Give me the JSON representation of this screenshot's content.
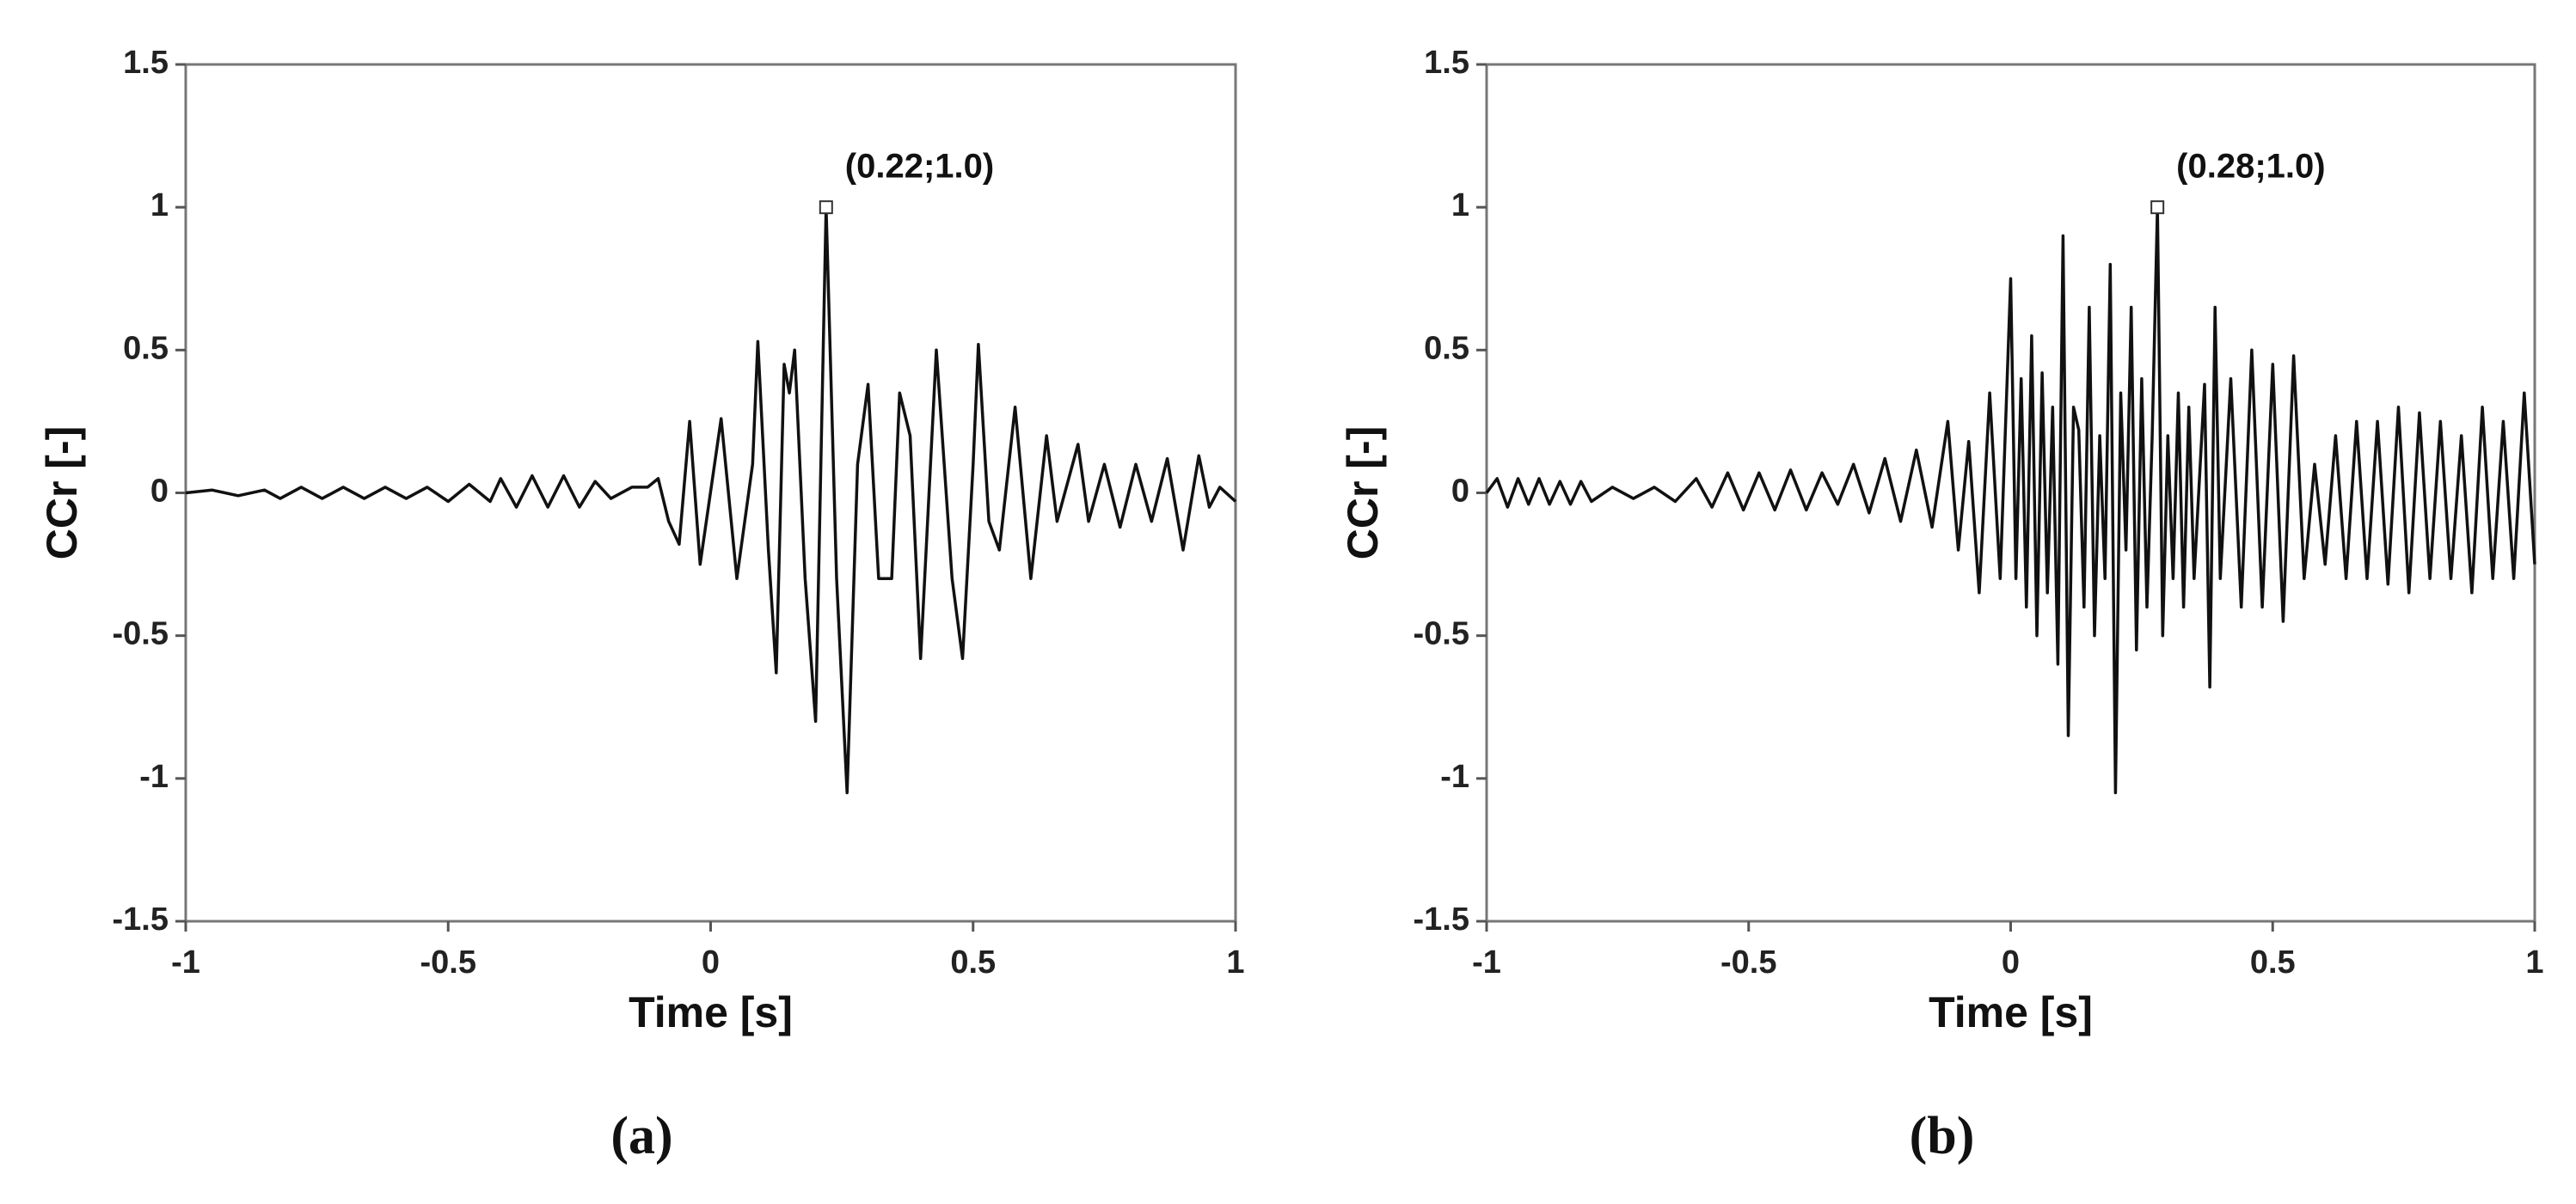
{
  "chart_data": [
    {
      "type": "line",
      "caption": "(a)",
      "xlabel": "Time [s]",
      "ylabel": "CCr [-]",
      "xlim": [
        -1,
        1
      ],
      "ylim": [
        -1.5,
        1.5
      ],
      "xticks": [
        -1,
        -0.5,
        0,
        0.5,
        1
      ],
      "yticks": [
        -1.5,
        -1,
        -0.5,
        0,
        0.5,
        1,
        1.5
      ],
      "annotation": {
        "text": "(0.22;1.0)",
        "x": 0.22,
        "y": 1.0
      },
      "series": [
        {
          "color": "#111111",
          "x": [
            -1,
            -0.95,
            -0.9,
            -0.85,
            -0.82,
            -0.78,
            -0.74,
            -0.7,
            -0.66,
            -0.62,
            -0.58,
            -0.54,
            -0.5,
            -0.46,
            -0.42,
            -0.4,
            -0.37,
            -0.34,
            -0.31,
            -0.28,
            -0.25,
            -0.22,
            -0.19,
            -0.15,
            -0.12,
            -0.1,
            -0.08,
            -0.06,
            -0.04,
            -0.02,
            0.02,
            0.05,
            0.08,
            0.09,
            0.11,
            0.125,
            0.14,
            0.15,
            0.16,
            0.18,
            0.2,
            0.22,
            0.24,
            0.26,
            0.28,
            0.3,
            0.32,
            0.345,
            0.36,
            0.38,
            0.4,
            0.43,
            0.46,
            0.48,
            0.5,
            0.51,
            0.53,
            0.55,
            0.58,
            0.61,
            0.64,
            0.66,
            0.7,
            0.72,
            0.75,
            0.78,
            0.81,
            0.84,
            0.87,
            0.9,
            0.93,
            0.95,
            0.97,
            1
          ],
          "values": [
            0,
            0.01,
            -0.01,
            0.01,
            -0.02,
            0.02,
            -0.02,
            0.02,
            -0.02,
            0.02,
            -0.02,
            0.02,
            -0.03,
            0.03,
            -0.03,
            0.05,
            -0.05,
            0.06,
            -0.05,
            0.06,
            -0.05,
            0.04,
            -0.02,
            0.02,
            0.02,
            0.05,
            -0.1,
            -0.18,
            0.25,
            -0.25,
            0.26,
            -0.3,
            0.1,
            0.53,
            -0.2,
            -0.63,
            0.45,
            0.35,
            0.5,
            -0.3,
            -0.8,
            1.0,
            -0.3,
            -1.05,
            0.1,
            0.38,
            -0.3,
            -0.3,
            0.35,
            0.2,
            -0.58,
            0.5,
            -0.3,
            -0.58,
            0.1,
            0.52,
            -0.1,
            -0.2,
            0.3,
            -0.3,
            0.2,
            -0.1,
            0.17,
            -0.1,
            0.1,
            -0.12,
            0.1,
            -0.1,
            0.12,
            -0.2,
            0.13,
            -0.05,
            0.02,
            -0.03
          ]
        }
      ]
    },
    {
      "type": "line",
      "caption": "(b)",
      "xlabel": "Time [s]",
      "ylabel": "CCr [-]",
      "xlim": [
        -1,
        1
      ],
      "ylim": [
        -1.5,
        1.5
      ],
      "xticks": [
        -1,
        -0.5,
        0,
        0.5,
        1
      ],
      "yticks": [
        -1.5,
        -1,
        -0.5,
        0,
        0.5,
        1,
        1.5
      ],
      "annotation": {
        "text": "(0.28;1.0)",
        "x": 0.28,
        "y": 1.0
      },
      "series": [
        {
          "color": "#111111",
          "x": [
            -1,
            -0.98,
            -0.96,
            -0.94,
            -0.92,
            -0.9,
            -0.88,
            -0.86,
            -0.84,
            -0.82,
            -0.8,
            -0.76,
            -0.72,
            -0.68,
            -0.64,
            -0.6,
            -0.57,
            -0.54,
            -0.51,
            -0.48,
            -0.45,
            -0.42,
            -0.39,
            -0.36,
            -0.33,
            -0.3,
            -0.27,
            -0.24,
            -0.21,
            -0.18,
            -0.15,
            -0.12,
            -0.1,
            -0.08,
            -0.06,
            -0.04,
            -0.02,
            0,
            0.01,
            0.02,
            0.03,
            0.04,
            0.05,
            0.06,
            0.07,
            0.08,
            0.09,
            0.1,
            0.11,
            0.12,
            0.13,
            0.14,
            0.15,
            0.16,
            0.17,
            0.18,
            0.19,
            0.2,
            0.21,
            0.22,
            0.23,
            0.24,
            0.25,
            0.26,
            0.27,
            0.28,
            0.29,
            0.3,
            0.31,
            0.32,
            0.33,
            0.34,
            0.35,
            0.37,
            0.38,
            0.39,
            0.4,
            0.42,
            0.44,
            0.46,
            0.48,
            0.5,
            0.52,
            0.54,
            0.56,
            0.58,
            0.6,
            0.62,
            0.64,
            0.66,
            0.68,
            0.7,
            0.72,
            0.74,
            0.76,
            0.78,
            0.8,
            0.82,
            0.84,
            0.86,
            0.88,
            0.9,
            0.92,
            0.94,
            0.96,
            0.98,
            1
          ],
          "values": [
            0,
            0.05,
            -0.05,
            0.05,
            -0.04,
            0.05,
            -0.04,
            0.04,
            -0.04,
            0.04,
            -0.03,
            0.02,
            -0.02,
            0.02,
            -0.03,
            0.05,
            -0.05,
            0.07,
            -0.06,
            0.07,
            -0.06,
            0.08,
            -0.06,
            0.07,
            -0.04,
            0.1,
            -0.07,
            0.12,
            -0.1,
            0.15,
            -0.12,
            0.25,
            -0.2,
            0.18,
            -0.35,
            0.35,
            -0.3,
            0.75,
            -0.3,
            0.4,
            -0.4,
            0.55,
            -0.5,
            0.42,
            -0.35,
            0.3,
            -0.6,
            0.9,
            -0.85,
            0.3,
            0.22,
            -0.4,
            0.65,
            -0.5,
            0.2,
            -0.3,
            0.8,
            -1.05,
            0.35,
            -0.2,
            0.65,
            -0.55,
            0.4,
            -0.4,
            0.2,
            1.0,
            -0.5,
            0.2,
            -0.3,
            0.35,
            -0.4,
            0.3,
            -0.3,
            0.38,
            -0.68,
            0.65,
            -0.3,
            0.4,
            -0.4,
            0.5,
            -0.4,
            0.45,
            -0.45,
            0.48,
            -0.3,
            0.1,
            -0.25,
            0.2,
            -0.3,
            0.25,
            -0.3,
            0.25,
            -0.32,
            0.3,
            -0.35,
            0.28,
            -0.3,
            0.25,
            -0.3,
            0.2,
            -0.35,
            0.3,
            -0.3,
            0.25,
            -0.3,
            0.35,
            -0.25
          ]
        }
      ]
    }
  ]
}
